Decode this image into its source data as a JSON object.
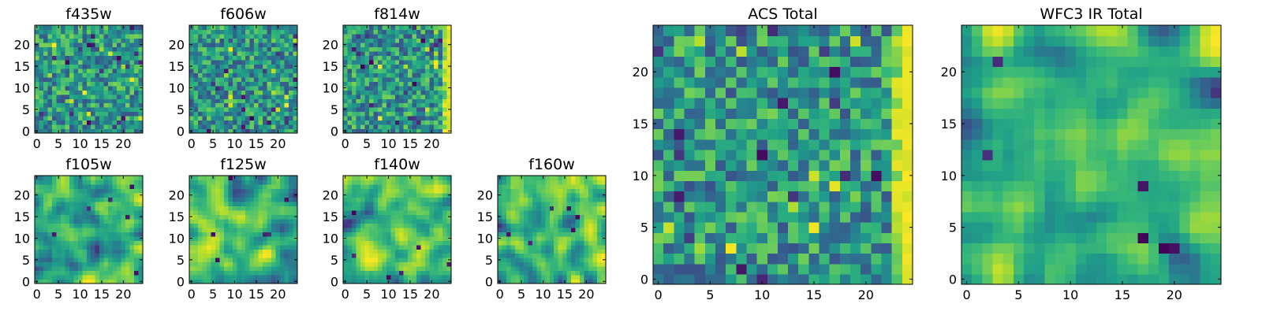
{
  "chart_data": [
    {
      "type": "heatmap",
      "title": "f435w",
      "xlim": [
        0,
        24
      ],
      "ylim": [
        0,
        24
      ],
      "xticks": [
        0,
        5,
        10,
        15,
        20
      ],
      "yticks": [
        0,
        5,
        10,
        15,
        20
      ],
      "colormap": "viridis",
      "value_range": [
        0,
        1
      ],
      "seed": 11,
      "style": "noise"
    },
    {
      "type": "heatmap",
      "title": "f606w",
      "xlim": [
        0,
        24
      ],
      "ylim": [
        0,
        24
      ],
      "xticks": [
        0,
        5,
        10,
        15,
        20
      ],
      "yticks": [
        0,
        5,
        10,
        15,
        20
      ],
      "colormap": "viridis",
      "value_range": [
        0,
        1
      ],
      "seed": 23,
      "style": "noise"
    },
    {
      "type": "heatmap",
      "title": "f814w",
      "xlim": [
        0,
        24
      ],
      "ylim": [
        0,
        24
      ],
      "xticks": [
        0,
        5,
        10,
        15,
        20
      ],
      "yticks": [
        0,
        5,
        10,
        15,
        20
      ],
      "colormap": "viridis",
      "value_range": [
        0,
        1
      ],
      "seed": 37,
      "style": "noise-edge"
    },
    {
      "type": "heatmap",
      "title": "f105w",
      "xlim": [
        0,
        24
      ],
      "ylim": [
        0,
        24
      ],
      "xticks": [
        0,
        5,
        10,
        15,
        20
      ],
      "yticks": [
        0,
        5,
        10,
        15,
        20
      ],
      "colormap": "viridis",
      "value_range": [
        0,
        1
      ],
      "seed": 41,
      "style": "smooth"
    },
    {
      "type": "heatmap",
      "title": "f125w",
      "xlim": [
        0,
        24
      ],
      "ylim": [
        0,
        24
      ],
      "xticks": [
        0,
        5,
        10,
        15,
        20
      ],
      "yticks": [
        0,
        5,
        10,
        15,
        20
      ],
      "colormap": "viridis",
      "value_range": [
        0,
        1
      ],
      "seed": 53,
      "style": "smooth"
    },
    {
      "type": "heatmap",
      "title": "f140w",
      "xlim": [
        0,
        24
      ],
      "ylim": [
        0,
        24
      ],
      "xticks": [
        0,
        5,
        10,
        15,
        20
      ],
      "yticks": [
        0,
        5,
        10,
        15,
        20
      ],
      "colormap": "viridis",
      "value_range": [
        0,
        1
      ],
      "seed": 67,
      "style": "smooth"
    },
    {
      "type": "heatmap",
      "title": "f160w",
      "xlim": [
        0,
        24
      ],
      "ylim": [
        0,
        24
      ],
      "xticks": [
        0,
        5,
        10,
        15,
        20
      ],
      "yticks": [
        0,
        5,
        10,
        15,
        20
      ],
      "colormap": "viridis",
      "value_range": [
        0,
        1
      ],
      "seed": 79,
      "style": "smooth"
    },
    {
      "type": "heatmap",
      "title": "ACS Total",
      "xlim": [
        0,
        24
      ],
      "ylim": [
        0,
        24
      ],
      "xticks": [
        0,
        5,
        10,
        15,
        20
      ],
      "yticks": [
        0,
        5,
        10,
        15,
        20
      ],
      "colormap": "viridis",
      "value_range": [
        0,
        1
      ],
      "seed": 97,
      "style": "noise-edge"
    },
    {
      "type": "heatmap",
      "title": "WFC3 IR Total",
      "xlim": [
        0,
        24
      ],
      "ylim": [
        0,
        24
      ],
      "xticks": [
        0,
        5,
        10,
        15,
        20
      ],
      "yticks": [
        0,
        5,
        10,
        15,
        20
      ],
      "colormap": "viridis",
      "value_range": [
        0,
        1
      ],
      "seed": 113,
      "style": "smooth"
    }
  ]
}
